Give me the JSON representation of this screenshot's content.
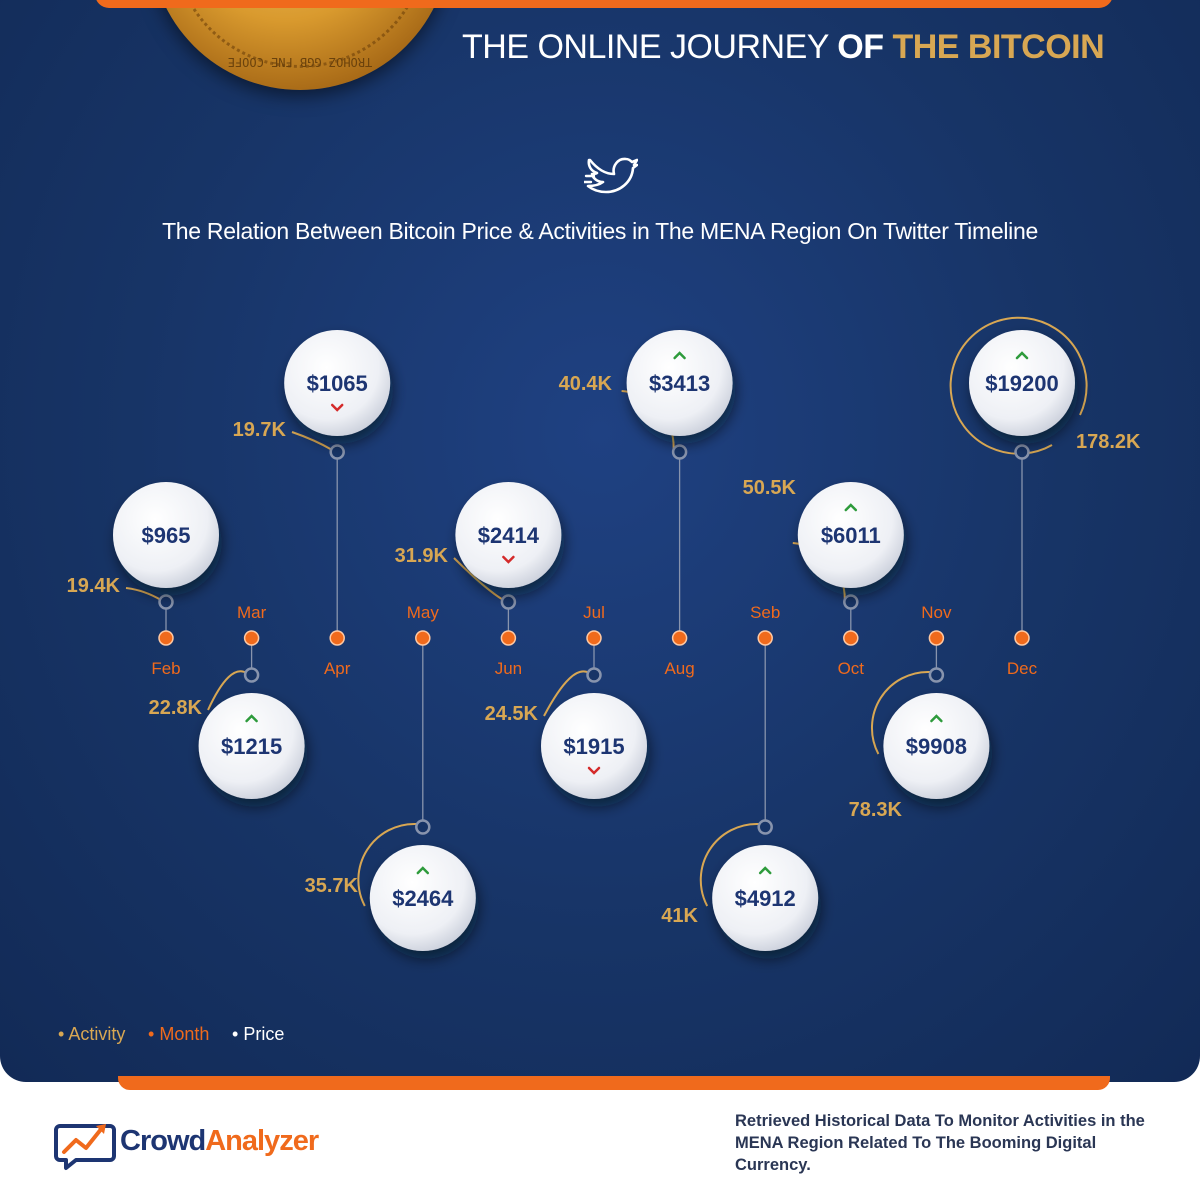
{
  "header": {
    "title_part1": "THE ONLINE JOURNEY ",
    "title_part2": "OF ",
    "title_part3": "THE BITCOIN",
    "coin_text": "TROHOZ GGB FNE COOFE",
    "subtitle": "The Relation Between Bitcoin Price & Activities in The MENA Region On Twitter Timeline"
  },
  "colors": {
    "activity": "#d8a753",
    "month": "#f06a1c",
    "price_text": "#1d3572",
    "up_arrow": "#2e9b3c",
    "down_arrow": "#d42a2a",
    "background": "#173466"
  },
  "chart_data": {
    "type": "timeline",
    "categories": [
      "Feb",
      "Mar",
      "Apr",
      "May",
      "Jun",
      "Jul",
      "Aug",
      "Seb",
      "Oct",
      "Nov",
      "Dec"
    ],
    "series": [
      {
        "name": "Price",
        "values": [
          "$965",
          "$1215",
          "$1065",
          "$2464",
          "$2414",
          "$1915",
          "$3413",
          "$4912",
          "$6011",
          "$9908",
          "$19200"
        ]
      },
      {
        "name": "Activity",
        "values": [
          "19.4K",
          "22.8K",
          "19.7K",
          "35.7K",
          "31.9K",
          "24.5K",
          "40.4K",
          "41K",
          "50.5K",
          "78.3K",
          "178.2K"
        ]
      }
    ],
    "trend": [
      "none",
      "up",
      "down",
      "up",
      "down",
      "down",
      "up",
      "up",
      "up",
      "up",
      "up"
    ]
  },
  "legend": {
    "activity": "Activity",
    "month": "Month",
    "price": "Price"
  },
  "footer": {
    "logo_part1": "Crowd",
    "logo_part2": "Analyzer",
    "text": "Retrieved Historical Data To Monitor Activities in the MENA Region Related To The Booming Digital Currency."
  }
}
